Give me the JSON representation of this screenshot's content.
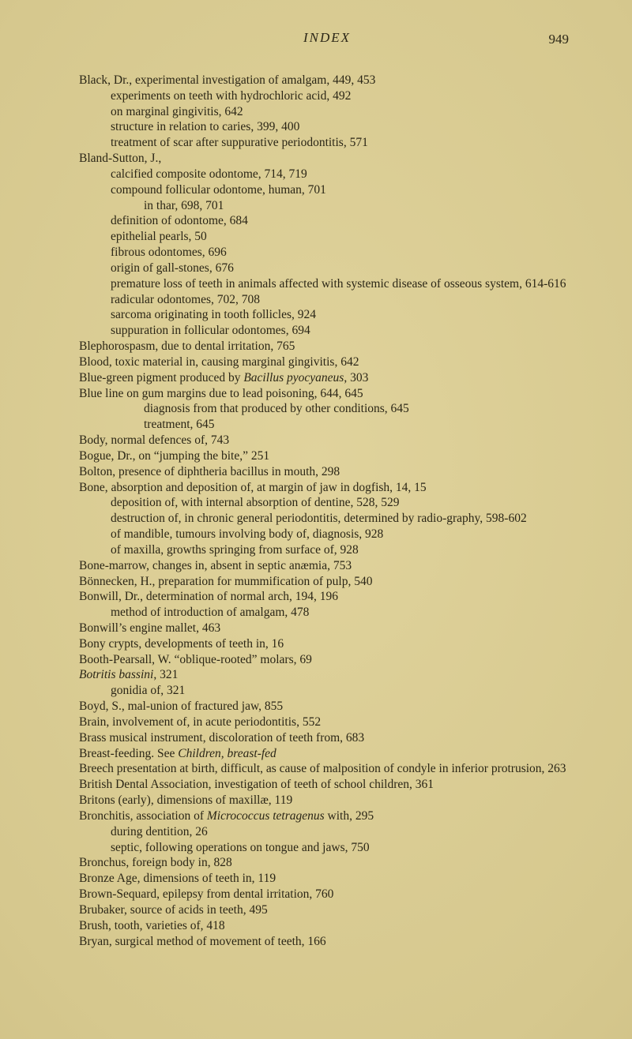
{
  "header": {
    "running_title": "INDEX",
    "page_number": "949"
  },
  "lines": [
    {
      "cls": "entry",
      "t": "Black, Dr., experimental investigation of amalgam, 449, 453"
    },
    {
      "cls": "sub1",
      "t": "experiments on teeth with hydrochloric acid, 492"
    },
    {
      "cls": "sub1",
      "t": "on marginal gingivitis, 642"
    },
    {
      "cls": "sub1",
      "t": "structure in relation to caries, 399, 400"
    },
    {
      "cls": "sub1",
      "t": "treatment of scar after suppurative periodontitis, 571"
    },
    {
      "cls": "entry",
      "t": "Bland-Sutton, J.,"
    },
    {
      "cls": "sub1",
      "t": "calcified composite odontome, 714, 719"
    },
    {
      "cls": "sub1",
      "t": "compound follicular odontome, human, 701"
    },
    {
      "cls": "sub2",
      "t": "in thar, 698, 701"
    },
    {
      "cls": "sub1",
      "t": "definition of odontome, 684"
    },
    {
      "cls": "sub1",
      "t": "epithelial pearls, 50"
    },
    {
      "cls": "sub1",
      "t": "fibrous odontomes, 696"
    },
    {
      "cls": "sub1",
      "t": "origin of gall-stones, 676"
    },
    {
      "cls": "sub1",
      "t": "premature loss of teeth in animals affected with systemic disease of osseous system, 614-616"
    },
    {
      "cls": "sub1",
      "t": "radicular odontomes, 702, 708"
    },
    {
      "cls": "sub1",
      "t": "sarcoma originating in tooth follicles, 924"
    },
    {
      "cls": "sub1",
      "t": "suppuration in follicular odontomes, 694"
    },
    {
      "cls": "entry",
      "t": "Blephorospasm, due to dental irritation, 765"
    },
    {
      "cls": "entry",
      "t": "Blood, toxic material in, causing marginal gingivitis, 642"
    },
    {
      "cls": "entry",
      "t": "Blue-green pigment produced by <span class=\"italic\">Bacillus pyocyaneus</span>, 303"
    },
    {
      "cls": "entry",
      "t": "Blue line on gum margins due to lead poisoning, 644, 645"
    },
    {
      "cls": "sub2",
      "t": "diagnosis from that produced by other conditions, 645"
    },
    {
      "cls": "sub2",
      "t": "treatment, 645"
    },
    {
      "cls": "entry",
      "t": "Body, normal defences of, 743"
    },
    {
      "cls": "entry",
      "t": "Bogue, Dr., on “jumping the bite,” 251"
    },
    {
      "cls": "entry",
      "t": "Bolton, presence of diphtheria bacillus in mouth, 298"
    },
    {
      "cls": "entry",
      "t": "Bone, absorption and deposition of, at margin of jaw in dogfish, 14, 15"
    },
    {
      "cls": "sub1",
      "t": "deposition of, with internal absorption of dentine, 528, 529"
    },
    {
      "cls": "sub1",
      "t": "destruction of, in chronic general periodontitis, determined by radio-graphy, 598-602"
    },
    {
      "cls": "sub1",
      "t": "of mandible, tumours involving body of, diagnosis, 928"
    },
    {
      "cls": "sub1",
      "t": "of maxilla, growths springing from surface of, 928"
    },
    {
      "cls": "entry",
      "t": "Bone-marrow, changes in, absent in septic anæmia, 753"
    },
    {
      "cls": "entry",
      "t": "Bönnecken, H., preparation for mummification of pulp, 540"
    },
    {
      "cls": "entry",
      "t": "Bonwill, Dr., determination of normal arch, 194, 196"
    },
    {
      "cls": "sub1",
      "t": "method of introduction of amalgam, 478"
    },
    {
      "cls": "entry",
      "t": "Bonwill’s engine mallet, 463"
    },
    {
      "cls": "entry",
      "t": "Bony crypts, developments of teeth in, 16"
    },
    {
      "cls": "entry",
      "t": "Booth-Pearsall, W. “oblique-rooted” molars, 69"
    },
    {
      "cls": "entry",
      "t": "<span class=\"italic\">Botritis bassini</span>, 321"
    },
    {
      "cls": "sub1",
      "t": "gonidia of, 321"
    },
    {
      "cls": "entry",
      "t": "Boyd, S., mal-union of fractured jaw, 855"
    },
    {
      "cls": "entry",
      "t": "Brain, involvement of, in acute periodontitis, 552"
    },
    {
      "cls": "entry",
      "t": "Brass musical instrument, discoloration of teeth from, 683"
    },
    {
      "cls": "entry",
      "t": "Breast-feeding. See <span class=\"italic\">Children, breast-fed</span>"
    },
    {
      "cls": "entry",
      "t": "Breech presentation at birth, difficult, as cause of malposition of condyle in inferior protrusion, 263"
    },
    {
      "cls": "entry",
      "t": "British Dental Association, investigation of teeth of school children, 361"
    },
    {
      "cls": "entry",
      "t": "Britons (early), dimensions of maxillæ, 119"
    },
    {
      "cls": "entry",
      "t": "Bronchitis, association of <span class=\"italic\">Micrococcus tetragenus</span> with, 295"
    },
    {
      "cls": "sub1",
      "t": "during dentition, 26"
    },
    {
      "cls": "sub1",
      "t": "septic, following operations on tongue and jaws, 750"
    },
    {
      "cls": "entry",
      "t": "Bronchus, foreign body in, 828"
    },
    {
      "cls": "entry",
      "t": "Bronze Age, dimensions of teeth in, 119"
    },
    {
      "cls": "entry",
      "t": "Brown-Sequard, epilepsy from dental irritation, 760"
    },
    {
      "cls": "entry",
      "t": "Brubaker, source of acids in teeth, 495"
    },
    {
      "cls": "entry",
      "t": "Brush, tooth, varieties of, 418"
    },
    {
      "cls": "entry",
      "t": "Bryan, surgical method of movement of teeth, 166"
    }
  ]
}
